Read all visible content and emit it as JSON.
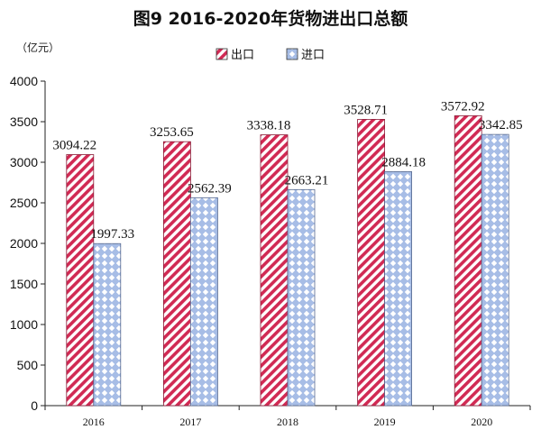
{
  "chart_data": {
    "type": "bar",
    "title": "图9  2016-2020年货物进出口总额",
    "unit": "（亿元）",
    "categories": [
      "2016",
      "2017",
      "2018",
      "2019",
      "2020"
    ],
    "series": [
      {
        "name": "出口",
        "values": [
          3094.22,
          3253.65,
          3338.18,
          3528.71,
          3572.92
        ],
        "pattern": "red-diagonal-hatch"
      },
      {
        "name": "进口",
        "values": [
          1997.33,
          2562.39,
          2663.21,
          2884.18,
          3342.85
        ],
        "pattern": "blue-diamond-lattice"
      }
    ],
    "ylim": [
      0,
      4000
    ],
    "yticks": [
      0,
      500,
      1000,
      1500,
      2000,
      2500,
      3000,
      3500,
      4000
    ],
    "grid": false,
    "legend_position": "top-center",
    "colors": {
      "export": "#d12a54",
      "import": "#8aa6d8"
    }
  }
}
